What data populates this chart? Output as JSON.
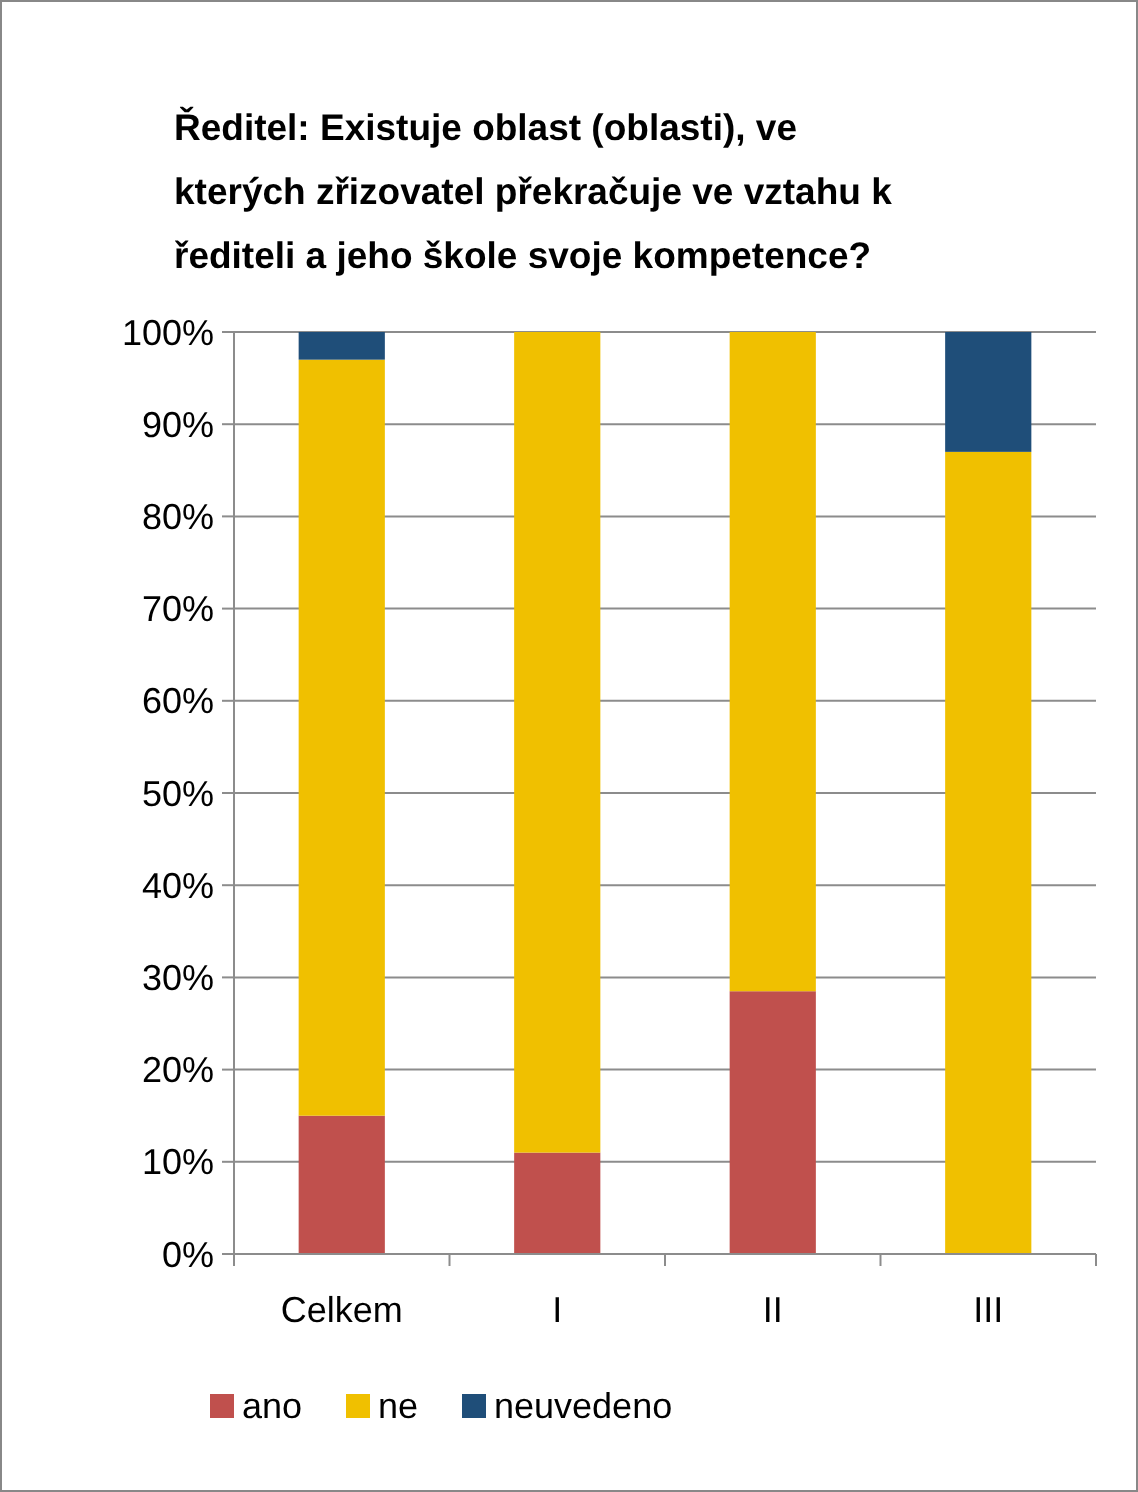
{
  "chart_data": {
    "type": "bar",
    "title": "Ředitel: Existuje oblast (oblasti), ve kterých zřizovatel překračuje ve vztahu k řediteli a jeho škole svoje kompetence?",
    "categories": [
      "Celkem",
      "I",
      "II",
      "III"
    ],
    "stacked": true,
    "series": [
      {
        "name": "ano",
        "color": "#c0504d",
        "values": [
          15,
          11,
          28.5,
          0
        ]
      },
      {
        "name": "ne",
        "color": "#f0c000",
        "values": [
          82,
          89,
          71.5,
          87
        ]
      },
      {
        "name": "neuvedeno",
        "color": "#1f4e79",
        "values": [
          3,
          0,
          0,
          13
        ]
      }
    ],
    "ylim": [
      0,
      100
    ],
    "yticks": [
      {
        "value": 0,
        "label": "0%"
      },
      {
        "value": 10,
        "label": "10%"
      },
      {
        "value": 20,
        "label": "20%"
      },
      {
        "value": 30,
        "label": "30%"
      },
      {
        "value": 40,
        "label": "40%"
      },
      {
        "value": 50,
        "label": "50%"
      },
      {
        "value": 60,
        "label": "60%"
      },
      {
        "value": 70,
        "label": "70%"
      },
      {
        "value": 80,
        "label": "80%"
      },
      {
        "value": 90,
        "label": "90%"
      },
      {
        "value": 100,
        "label": "100%"
      }
    ],
    "grid": "y",
    "legend": "bottom"
  }
}
